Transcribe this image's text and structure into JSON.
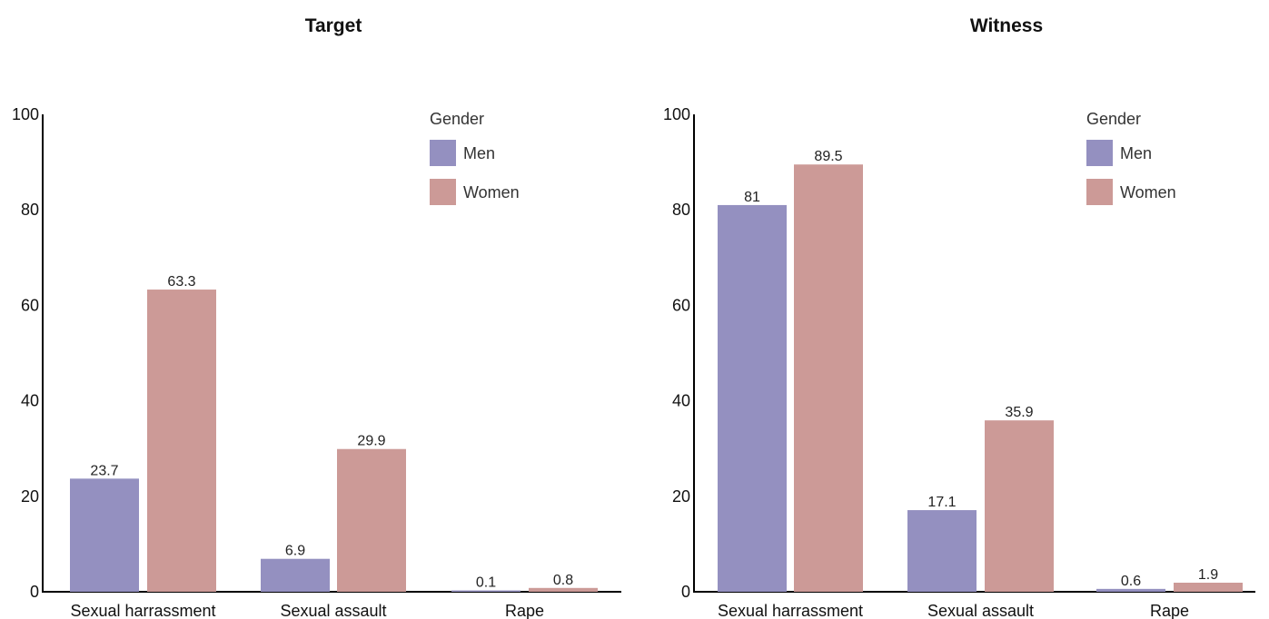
{
  "chart_data": [
    {
      "type": "bar",
      "title": "Target",
      "categories": [
        "Sexual harrassment",
        "Sexual assault",
        "Rape"
      ],
      "series": [
        {
          "name": "Men",
          "color": "#9490c0",
          "values": [
            23.7,
            6.9,
            0.1
          ]
        },
        {
          "name": "Women",
          "color": "#cc9a97",
          "values": [
            63.3,
            29.9,
            0.8
          ]
        }
      ],
      "legend_title": "Gender",
      "legend_position": "top-right",
      "ylim": [
        0,
        100
      ],
      "yticks": [
        0,
        20,
        40,
        60,
        80,
        100
      ],
      "grid": false
    },
    {
      "type": "bar",
      "title": "Witness",
      "categories": [
        "Sexual harrassment",
        "Sexual assault",
        "Rape"
      ],
      "series": [
        {
          "name": "Men",
          "color": "#9490c0",
          "values": [
            81,
            17.1,
            0.6
          ]
        },
        {
          "name": "Women",
          "color": "#cc9a97",
          "values": [
            89.5,
            35.9,
            1.9
          ]
        }
      ],
      "legend_title": "Gender",
      "legend_position": "top-right",
      "ylim": [
        0,
        100
      ],
      "yticks": [
        0,
        20,
        40,
        60,
        80,
        100
      ],
      "grid": false
    }
  ]
}
